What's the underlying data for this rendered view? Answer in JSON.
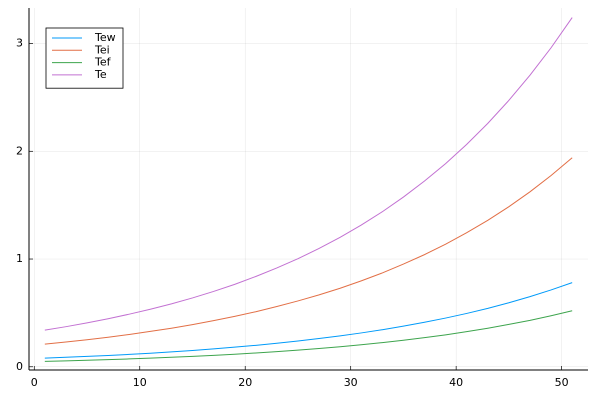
{
  "chart_data": {
    "type": "line",
    "x": [
      1,
      3,
      5,
      7,
      9,
      11,
      13,
      15,
      17,
      19,
      21,
      23,
      25,
      27,
      29,
      31,
      33,
      35,
      37,
      39,
      41,
      43,
      45,
      47,
      49,
      51
    ],
    "series": [
      {
        "name": "Tew",
        "color": "#009af9",
        "values": [
          0.08,
          0.088,
          0.096,
          0.105,
          0.115,
          0.126,
          0.138,
          0.151,
          0.166,
          0.182,
          0.199,
          0.218,
          0.239,
          0.262,
          0.287,
          0.314,
          0.344,
          0.377,
          0.413,
          0.452,
          0.495,
          0.542,
          0.594,
          0.651,
          0.713,
          0.781
        ]
      },
      {
        "name": "Tei",
        "color": "#e26f46",
        "values": [
          0.21,
          0.23,
          0.251,
          0.274,
          0.3,
          0.328,
          0.358,
          0.391,
          0.428,
          0.468,
          0.511,
          0.559,
          0.611,
          0.667,
          0.729,
          0.797,
          0.871,
          0.953,
          1.041,
          1.138,
          1.244,
          1.359,
          1.486,
          1.624,
          1.775,
          1.94
        ]
      },
      {
        "name": "Tef",
        "color": "#3da44d",
        "values": [
          0.05,
          0.055,
          0.06,
          0.066,
          0.073,
          0.08,
          0.088,
          0.096,
          0.106,
          0.116,
          0.128,
          0.14,
          0.154,
          0.169,
          0.186,
          0.204,
          0.224,
          0.246,
          0.27,
          0.296,
          0.326,
          0.358,
          0.393,
          0.431,
          0.474,
          0.52
        ]
      },
      {
        "name": "Te",
        "color": "#c271d2",
        "values": [
          0.34,
          0.372,
          0.407,
          0.446,
          0.488,
          0.534,
          0.584,
          0.639,
          0.699,
          0.765,
          0.838,
          0.917,
          1.003,
          1.098,
          1.202,
          1.315,
          1.439,
          1.575,
          1.724,
          1.886,
          2.064,
          2.259,
          2.473,
          2.706,
          2.961,
          3.241
        ]
      }
    ],
    "xlim": [
      -0.5,
      52.5
    ],
    "xticks": [
      0,
      10,
      20,
      30,
      40,
      50
    ],
    "ylim": [
      -0.03,
      3.33
    ],
    "yticks": [
      0,
      1,
      2,
      3
    ],
    "grid": true,
    "legend": "top-left"
  }
}
